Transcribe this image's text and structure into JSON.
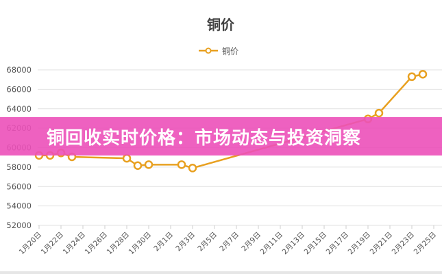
{
  "banner": {
    "text": "铜回收实时价格：市场动态与投资洞察",
    "color": "#ee5cbe"
  },
  "chart_data": {
    "type": "line",
    "title": "铜价",
    "legend": "top-center",
    "grid": true,
    "ylim": [
      52000,
      68000
    ],
    "yticks": [
      "52000",
      "54000",
      "56000",
      "58000",
      "60000",
      "62000",
      "64000",
      "66000",
      "68000"
    ],
    "xticks": [
      "1月20日",
      "1月22日",
      "1月24日",
      "1月26日",
      "1月28日",
      "1月30日",
      "2月1日",
      "2月3日",
      "2月5日",
      "2月7日",
      "2月9日",
      "2月11日",
      "2月13日",
      "2月15日",
      "2月17日",
      "2月19日",
      "2月21日",
      "2月23日",
      "2月25日"
    ],
    "series": [
      {
        "name": "铜价",
        "color": "#e8a020",
        "points": [
          {
            "x": "1月20日",
            "y": 59200
          },
          {
            "x": "1月21日",
            "y": 59200
          },
          {
            "x": "1月22日",
            "y": 59450
          },
          {
            "x": "1月23日",
            "y": 59050
          },
          {
            "x": "1月28日",
            "y": 58900
          },
          {
            "x": "1月29日",
            "y": 58150
          },
          {
            "x": "1月30日",
            "y": 58250
          },
          {
            "x": "2月2日",
            "y": 58250
          },
          {
            "x": "2月3日",
            "y": 57900
          },
          {
            "x": "2月19日",
            "y": 62950
          },
          {
            "x": "2月20日",
            "y": 63550
          },
          {
            "x": "2月23日",
            "y": 67300
          },
          {
            "x": "2月24日",
            "y": 67550
          }
        ]
      }
    ]
  }
}
